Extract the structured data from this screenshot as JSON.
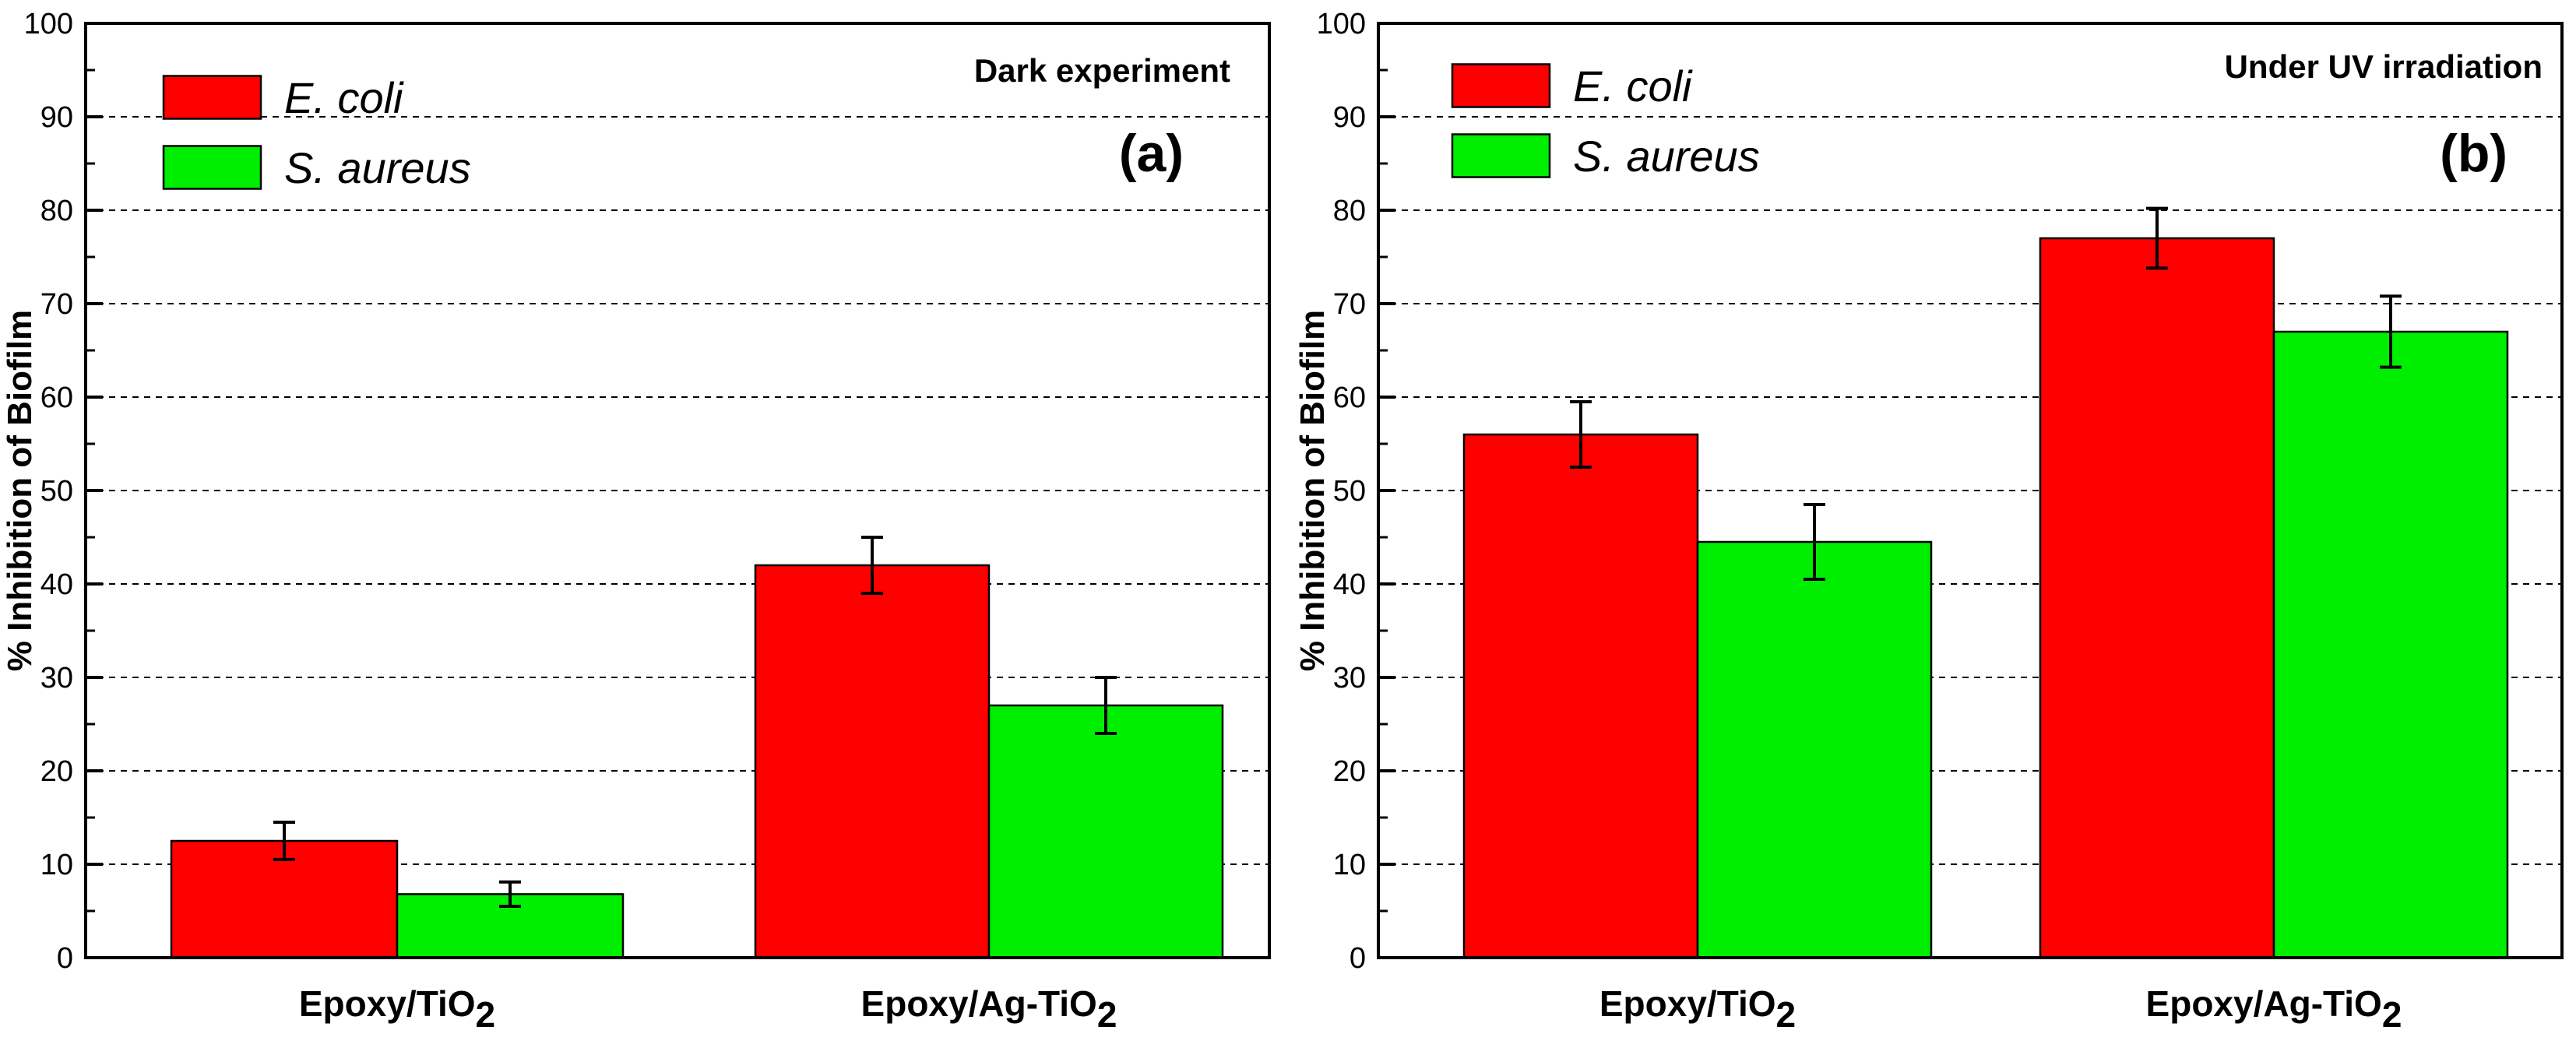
{
  "chart_data": [
    {
      "type": "bar",
      "panel_label": "(a)",
      "title": "Dark experiment",
      "ylabel": "% Inhibition of Biofilm",
      "xlabel": "",
      "ylim": [
        0,
        100
      ],
      "yticks": [
        0,
        10,
        20,
        30,
        40,
        50,
        60,
        70,
        80,
        90,
        100
      ],
      "grid": "horizontal dashed",
      "legend_position": "top-left",
      "categories": [
        {
          "base": "Epoxy/TiO",
          "sub": "2"
        },
        {
          "base": "Epoxy/Ag-TiO",
          "sub": "2"
        }
      ],
      "series": [
        {
          "name": "E. coli",
          "color": "#ff0000",
          "values": [
            12.5,
            42
          ],
          "errors": [
            2,
            3
          ]
        },
        {
          "name": "S. aureus",
          "color": "#00ee00",
          "values": [
            6.8,
            27
          ],
          "errors": [
            1.3,
            3
          ]
        }
      ]
    },
    {
      "type": "bar",
      "panel_label": "(b)",
      "title": "Under UV irradiation",
      "ylabel": "% Inhibition of Biofilm",
      "xlabel": "",
      "ylim": [
        0,
        100
      ],
      "yticks": [
        0,
        10,
        20,
        30,
        40,
        50,
        60,
        70,
        80,
        90,
        100
      ],
      "grid": "horizontal dashed",
      "legend_position": "top-left",
      "categories": [
        {
          "base": "Epoxy/TiO",
          "sub": "2"
        },
        {
          "base": "Epoxy/Ag-TiO",
          "sub": "2"
        }
      ],
      "series": [
        {
          "name": "E. coli",
          "color": "#ff0000",
          "values": [
            56,
            77
          ],
          "errors": [
            3.5,
            3.2
          ]
        },
        {
          "name": "S. aureus",
          "color": "#00ee00",
          "values": [
            44.5,
            67
          ],
          "errors": [
            4,
            3.8
          ]
        }
      ]
    }
  ]
}
